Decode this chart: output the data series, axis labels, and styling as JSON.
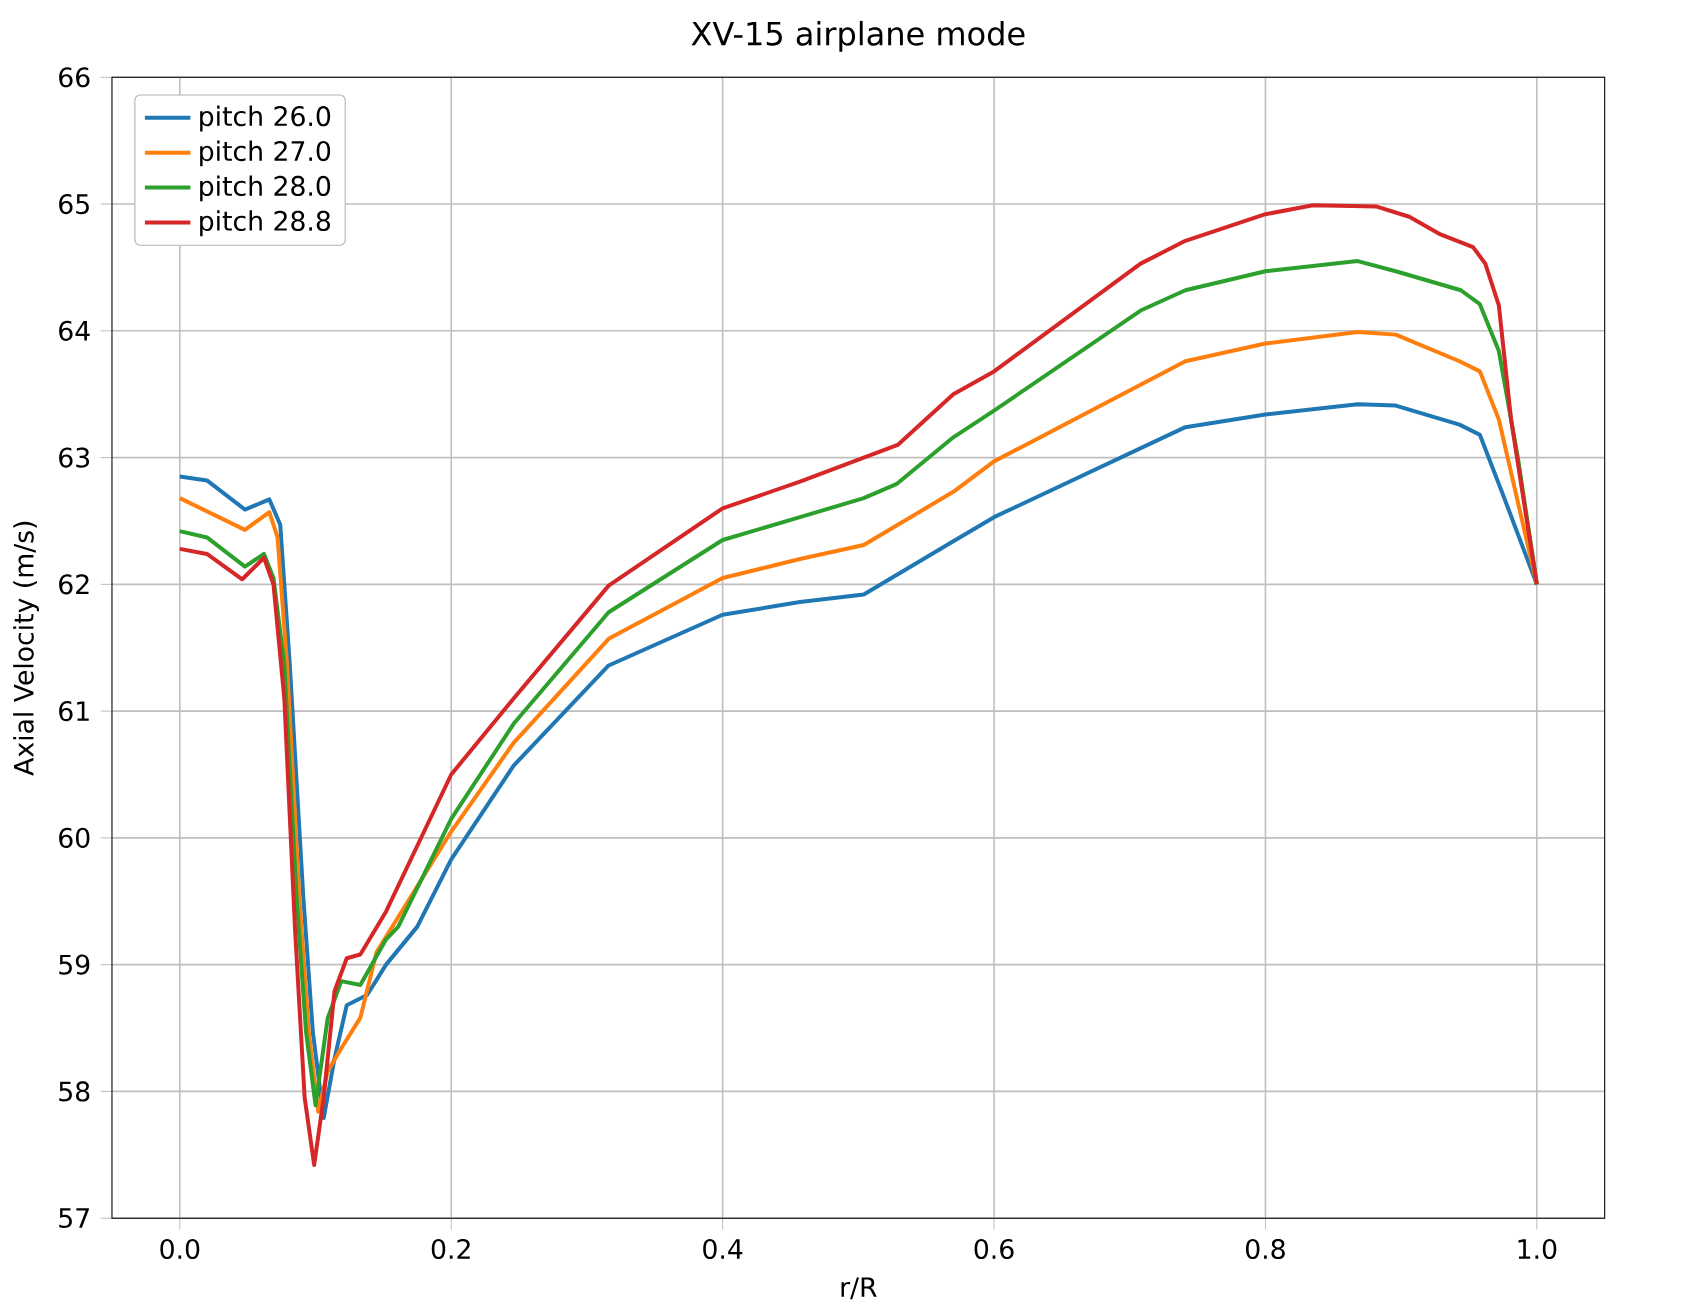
{
  "chart_data": {
    "type": "line",
    "title": "XV-15 airplane mode",
    "xlabel": "r/R",
    "ylabel": "Axial Velocity (m/s)",
    "xlim": [
      -0.05,
      1.05
    ],
    "ylim": [
      57,
      66
    ],
    "xticks": [
      {
        "value": 0,
        "label": "0.0"
      },
      {
        "value": 0.2,
        "label": "0.2"
      },
      {
        "value": 0.4,
        "label": "0.4"
      },
      {
        "value": 0.6,
        "label": "0.6"
      },
      {
        "value": 0.8,
        "label": "0.8"
      },
      {
        "value": 1,
        "label": "1.0"
      }
    ],
    "yticks": [
      57,
      58,
      59,
      60,
      61,
      62,
      63,
      64,
      65,
      66
    ],
    "grid": true,
    "legend": "top left",
    "marker": "none",
    "line_style": "solid",
    "series": [
      {
        "name": "pitch 26.0",
        "color": "#1f77b4",
        "x": [
          0,
          0.02,
          0.048,
          0.066,
          0.074,
          0.081,
          0.091,
          0.098,
          0.106,
          0.114,
          0.123,
          0.138,
          0.152,
          0.175,
          0.2,
          0.246,
          0.316,
          0.4,
          0.457,
          0.504,
          0.57,
          0.6,
          0.741,
          0.8,
          0.868,
          0.896,
          0.943,
          0.958,
          0.976,
          1.0
        ],
        "values": [
          62.85,
          62.82,
          62.59,
          62.67,
          62.47,
          61.37,
          59.53,
          58.47,
          57.79,
          58.26,
          58.68,
          58.76,
          59.0,
          59.3,
          59.83,
          60.57,
          61.36,
          61.76,
          61.86,
          61.92,
          62.34,
          62.53,
          63.24,
          63.34,
          63.42,
          63.41,
          63.26,
          63.18,
          62.68,
          62.0
        ]
      },
      {
        "name": "pitch 27.0",
        "color": "#ff7f0e",
        "x": [
          0,
          0.048,
          0.066,
          0.072,
          0.079,
          0.088,
          0.095,
          0.102,
          0.109,
          0.119,
          0.133,
          0.145,
          0.2,
          0.246,
          0.316,
          0.4,
          0.457,
          0.504,
          0.57,
          0.6,
          0.741,
          0.8,
          0.868,
          0.896,
          0.943,
          0.958,
          0.972,
          1.0
        ],
        "values": [
          62.68,
          62.43,
          62.57,
          62.37,
          61.37,
          59.53,
          58.47,
          57.84,
          58.16,
          58.34,
          58.58,
          59.1,
          60.05,
          60.75,
          61.57,
          62.05,
          62.2,
          62.31,
          62.73,
          62.97,
          63.76,
          63.9,
          63.99,
          63.97,
          63.76,
          63.68,
          63.3,
          62.0
        ]
      },
      {
        "name": "pitch 28.0",
        "color": "#2ca02c",
        "x": [
          0,
          0.02,
          0.048,
          0.062,
          0.069,
          0.077,
          0.086,
          0.093,
          0.1,
          0.109,
          0.119,
          0.133,
          0.152,
          0.161,
          0.2,
          0.246,
          0.316,
          0.4,
          0.457,
          0.504,
          0.528,
          0.57,
          0.6,
          0.708,
          0.741,
          0.8,
          0.868,
          0.896,
          0.944,
          0.958,
          0.972,
          0.986,
          1.0
        ],
        "values": [
          62.42,
          62.37,
          62.14,
          62.24,
          62.05,
          61.37,
          59.53,
          58.47,
          57.89,
          58.58,
          58.87,
          58.84,
          59.2,
          59.3,
          60.15,
          60.9,
          61.78,
          62.35,
          62.53,
          62.68,
          62.79,
          63.16,
          63.37,
          64.16,
          64.32,
          64.47,
          64.55,
          64.47,
          64.32,
          64.21,
          63.84,
          63.0,
          62.0
        ]
      },
      {
        "name": "pitch 28.8",
        "color": "#d62728",
        "x": [
          0,
          0.02,
          0.046,
          0.062,
          0.069,
          0.077,
          0.085,
          0.092,
          0.099,
          0.106,
          0.114,
          0.123,
          0.133,
          0.152,
          0.2,
          0.246,
          0.316,
          0.4,
          0.457,
          0.504,
          0.529,
          0.57,
          0.6,
          0.708,
          0.741,
          0.8,
          0.835,
          0.882,
          0.906,
          0.929,
          0.953,
          0.962,
          0.972,
          0.981,
          1.0
        ],
        "values": [
          62.28,
          62.24,
          62.04,
          62.21,
          62.0,
          61.1,
          59.26,
          57.95,
          57.42,
          57.95,
          58.79,
          59.05,
          59.08,
          59.42,
          60.5,
          61.1,
          61.99,
          62.6,
          62.81,
          63.0,
          63.1,
          63.5,
          63.68,
          64.53,
          64.71,
          64.92,
          64.99,
          64.98,
          64.9,
          64.76,
          64.66,
          64.53,
          64.2,
          63.3,
          62.0
        ]
      }
    ]
  }
}
